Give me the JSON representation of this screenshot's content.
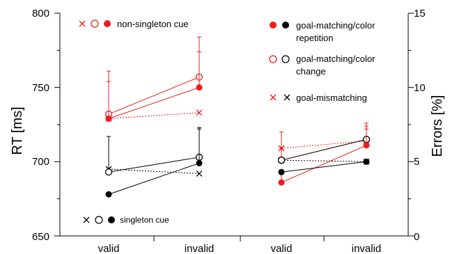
{
  "chart_data": {
    "type": "line",
    "categories": [
      "valid",
      "invalid",
      "valid",
      "invalid"
    ],
    "y_left": {
      "label": "RT [ms]",
      "range": [
        650,
        800
      ],
      "ticks": [
        "650",
        "700",
        "750",
        "800"
      ]
    },
    "y_right": {
      "label": "Errors [%]",
      "range": [
        0,
        15
      ],
      "ticks": [
        "0",
        "5",
        "10",
        "15"
      ]
    },
    "grid": false,
    "panels": [
      {
        "name": "RT",
        "axis": "left",
        "series": [
          {
            "name": "non-singleton cue, goal-matching/color repetition",
            "color": "#ee1c1c",
            "marker": "filled-circle",
            "line": "solid",
            "values": [
              729,
              750
            ],
            "errors": [
              25,
              24
            ]
          },
          {
            "name": "non-singleton cue, goal-matching/color change",
            "color": "#ee1c1c",
            "marker": "open-circle",
            "line": "solid",
            "values": [
              732,
              757
            ],
            "errors": [
              29,
              27
            ]
          },
          {
            "name": "non-singleton cue, goal-mismatching",
            "color": "#ee1c1c",
            "marker": "cross",
            "line": "dotted",
            "values": [
              729,
              733
            ],
            "errors": [
              0,
              0
            ]
          },
          {
            "name": "singleton cue, goal-matching/color repetition",
            "color": "#000000",
            "marker": "filled-circle",
            "line": "solid",
            "values": [
              678,
              699
            ],
            "errors": [
              0,
              23
            ]
          },
          {
            "name": "singleton cue, goal-matching/color change",
            "color": "#000000",
            "marker": "open-circle",
            "line": "solid",
            "values": [
              693,
              703
            ],
            "errors": [
              24,
              20
            ]
          },
          {
            "name": "singleton cue, goal-mismatching",
            "color": "#000000",
            "marker": "cross",
            "line": "dotted",
            "values": [
              695,
              692
            ],
            "errors": [
              0,
              0
            ]
          }
        ]
      },
      {
        "name": "Errors",
        "axis": "right",
        "series": [
          {
            "name": "non-singleton cue, goal-matching/color repetition",
            "color": "#ee1c1c",
            "marker": "filled-circle",
            "line": "solid",
            "values": [
              3.6,
              6.1
            ],
            "errors": [
              0.8,
              1.1
            ]
          },
          {
            "name": "non-singleton cue, goal-matching/color change",
            "color": "#ee1c1c",
            "marker": "open-circle",
            "line": "solid",
            "values": [
              5.1,
              6.5
            ],
            "errors": [
              0.8,
              1.1
            ]
          },
          {
            "name": "non-singleton cue, goal-mismatching",
            "color": "#ee1c1c",
            "marker": "cross",
            "line": "dotted",
            "values": [
              5.9,
              6.4
            ],
            "errors": [
              1.1,
              1.0
            ]
          },
          {
            "name": "singleton cue, goal-matching/color repetition",
            "color": "#000000",
            "marker": "filled-circle",
            "line": "solid",
            "values": [
              4.3,
              5.0
            ],
            "errors": [
              0,
              0
            ]
          },
          {
            "name": "singleton cue, goal-matching/color change",
            "color": "#000000",
            "marker": "open-circle",
            "line": "solid",
            "values": [
              5.1,
              6.5
            ],
            "errors": [
              0,
              0
            ]
          },
          {
            "name": "singleton cue, goal-mismatching",
            "color": "#000000",
            "marker": "cross",
            "line": "dotted",
            "values": [
              5.1,
              5.0
            ],
            "errors": [
              0,
              0
            ]
          }
        ]
      }
    ],
    "legend": {
      "non_singleton": "non-singleton cue",
      "singleton": "singleton cue",
      "repetition_line1": "goal-matching/color",
      "repetition_line2": "repetition",
      "change_line1": "goal-matching/color",
      "change_line2": "change",
      "mismatching": "goal-mismatching"
    },
    "colors": {
      "red": "#ee1c1c",
      "black": "#000000"
    }
  }
}
